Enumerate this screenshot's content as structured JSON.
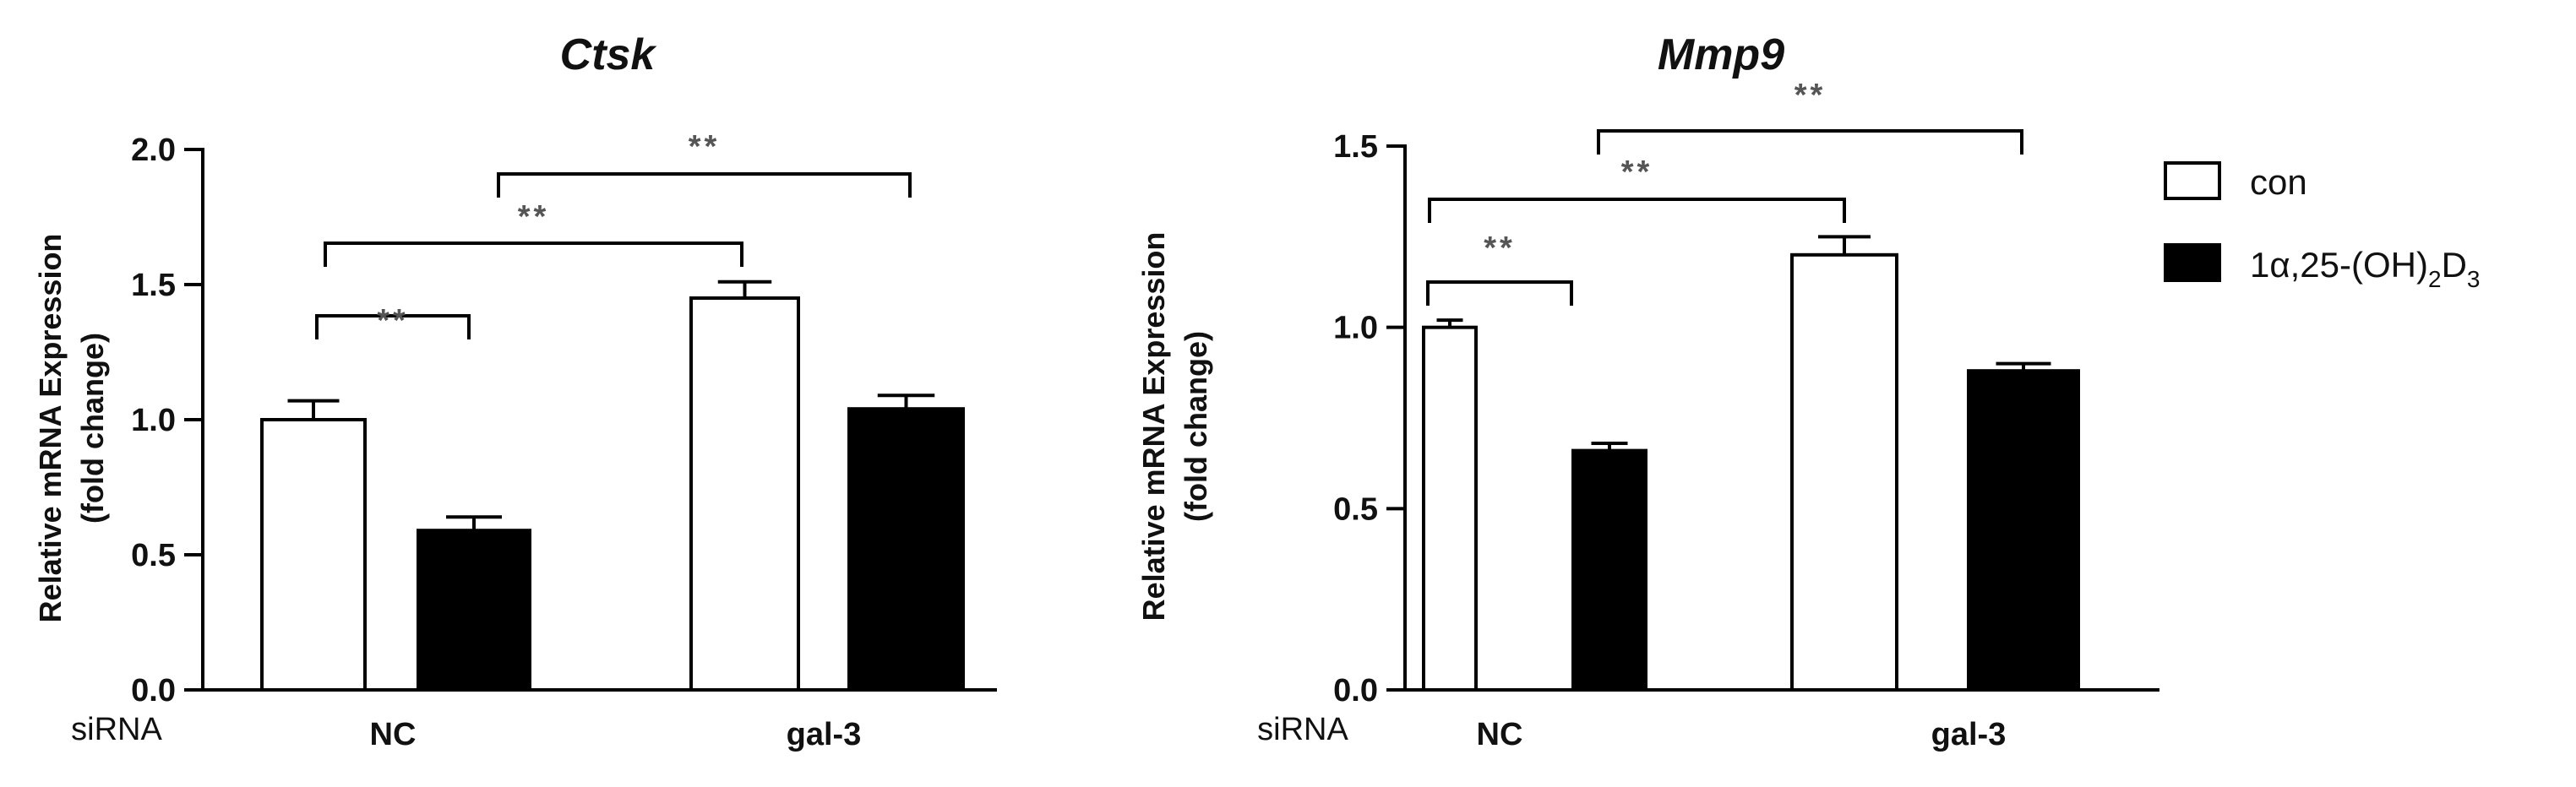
{
  "legend": {
    "items": [
      {
        "label": "con",
        "color": "#ffffff"
      },
      {
        "label_main": "1α,25-(OH)",
        "label_sub1": "2",
        "label_mid": "D",
        "label_sub2": "3",
        "color": "#000000"
      }
    ]
  },
  "chart_data": [
    {
      "type": "bar",
      "title": "Ctsk",
      "ylabel": [
        "Relative  mRNA Expression",
        "(fold change)"
      ],
      "xlabel_prefix": "siRNA",
      "categories": [
        "NC",
        "gal-3"
      ],
      "ylim": [
        0,
        2.0
      ],
      "yticks": [
        0.0,
        0.5,
        1.0,
        1.5,
        2.0
      ],
      "ytick_labels": [
        "0.0",
        "0.5",
        "1.0",
        "1.5",
        "2.0"
      ],
      "series": [
        {
          "name": "con",
          "values": [
            1.0,
            1.45
          ],
          "errors": [
            0.07,
            0.06
          ],
          "color": "#ffffff"
        },
        {
          "name": "1α,25-(OH)2D3",
          "values": [
            0.59,
            1.04
          ],
          "errors": [
            0.05,
            0.05
          ],
          "color": "#000000"
        }
      ],
      "significance": [
        {
          "from": [
            0,
            0
          ],
          "to": [
            0,
            1
          ],
          "label": "**"
        },
        {
          "from": [
            0,
            0
          ],
          "to": [
            1,
            0
          ],
          "label": "**"
        },
        {
          "from": [
            0,
            1
          ],
          "to": [
            1,
            1
          ],
          "label": "**"
        }
      ]
    },
    {
      "type": "bar",
      "title": "Mmp9",
      "ylabel": [
        "Relative  mRNA Expression",
        "(fold change)"
      ],
      "xlabel_prefix": "siRNA",
      "categories": [
        "NC",
        "gal-3"
      ],
      "ylim": [
        0,
        1.5
      ],
      "yticks": [
        0.0,
        0.5,
        1.0,
        1.5
      ],
      "ytick_labels": [
        "0.0",
        "0.5",
        "1.0",
        "1.5"
      ],
      "series": [
        {
          "name": "con",
          "values": [
            1.0,
            1.2
          ],
          "errors": [
            0.02,
            0.05
          ],
          "color": "#ffffff"
        },
        {
          "name": "1α,25-(OH)2D3",
          "values": [
            0.66,
            0.88
          ],
          "errors": [
            0.02,
            0.02
          ],
          "color": "#000000"
        }
      ],
      "significance": [
        {
          "from": [
            0,
            0
          ],
          "to": [
            0,
            1
          ],
          "label": "**"
        },
        {
          "from": [
            0,
            0
          ],
          "to": [
            1,
            0
          ],
          "label": "**"
        },
        {
          "from": [
            0,
            1
          ],
          "to": [
            1,
            1
          ],
          "label": "**"
        }
      ]
    }
  ]
}
